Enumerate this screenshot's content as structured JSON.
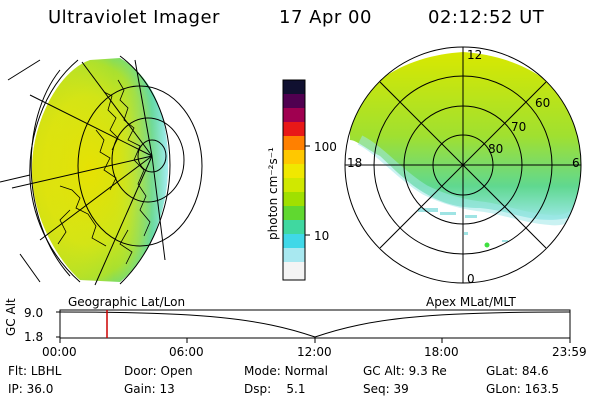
{
  "header": {
    "instrument": "Ultraviolet Imager",
    "date": "17 Apr 00",
    "time": "02:12:52 UT"
  },
  "colorbar": {
    "unit_label": "photon cm⁻²s⁻¹",
    "ticks": [
      "100",
      "10"
    ],
    "colors": [
      "#f0f0f0",
      "#40d8e8",
      "#60e040",
      "#d8f000",
      "#ffd000",
      "#ff8000",
      "#e01010",
      "#a00060",
      "#400040",
      "#000000"
    ]
  },
  "left_panel": {
    "name": "Geographic Lat/Lon"
  },
  "right_panel": {
    "name": "Apex MLat/MLT",
    "mlt_labels": {
      "top": "12",
      "left": "18",
      "right": "6",
      "bottom": "0"
    },
    "lat_labels": [
      "60",
      "70",
      "80"
    ]
  },
  "timeline": {
    "axis_label": "GC Alt",
    "y_ticks": [
      "9.0",
      "1.8"
    ],
    "x_ticks": [
      "00:00",
      "06:00",
      "12:00",
      "18:00",
      "23:59"
    ],
    "marker_color": "#cc0000"
  },
  "status": {
    "row1": [
      {
        "label": "Flt:",
        "value": "LBHL"
      },
      {
        "label": "Door:",
        "value": "Open"
      },
      {
        "label": "Mode:",
        "value": "Normal"
      },
      {
        "label": "GC Alt:",
        "value": "9.3 Re"
      },
      {
        "label": "GLat:",
        "value": "84.6"
      }
    ],
    "row2": [
      {
        "label": "IP:",
        "value": "36.0"
      },
      {
        "label": "Gain:",
        "value": "13"
      },
      {
        "label": "Dsp:",
        "value": "5.1"
      },
      {
        "label": "Seq:",
        "value": "39"
      },
      {
        "label": "GLon:",
        "value": "163.5"
      }
    ]
  }
}
